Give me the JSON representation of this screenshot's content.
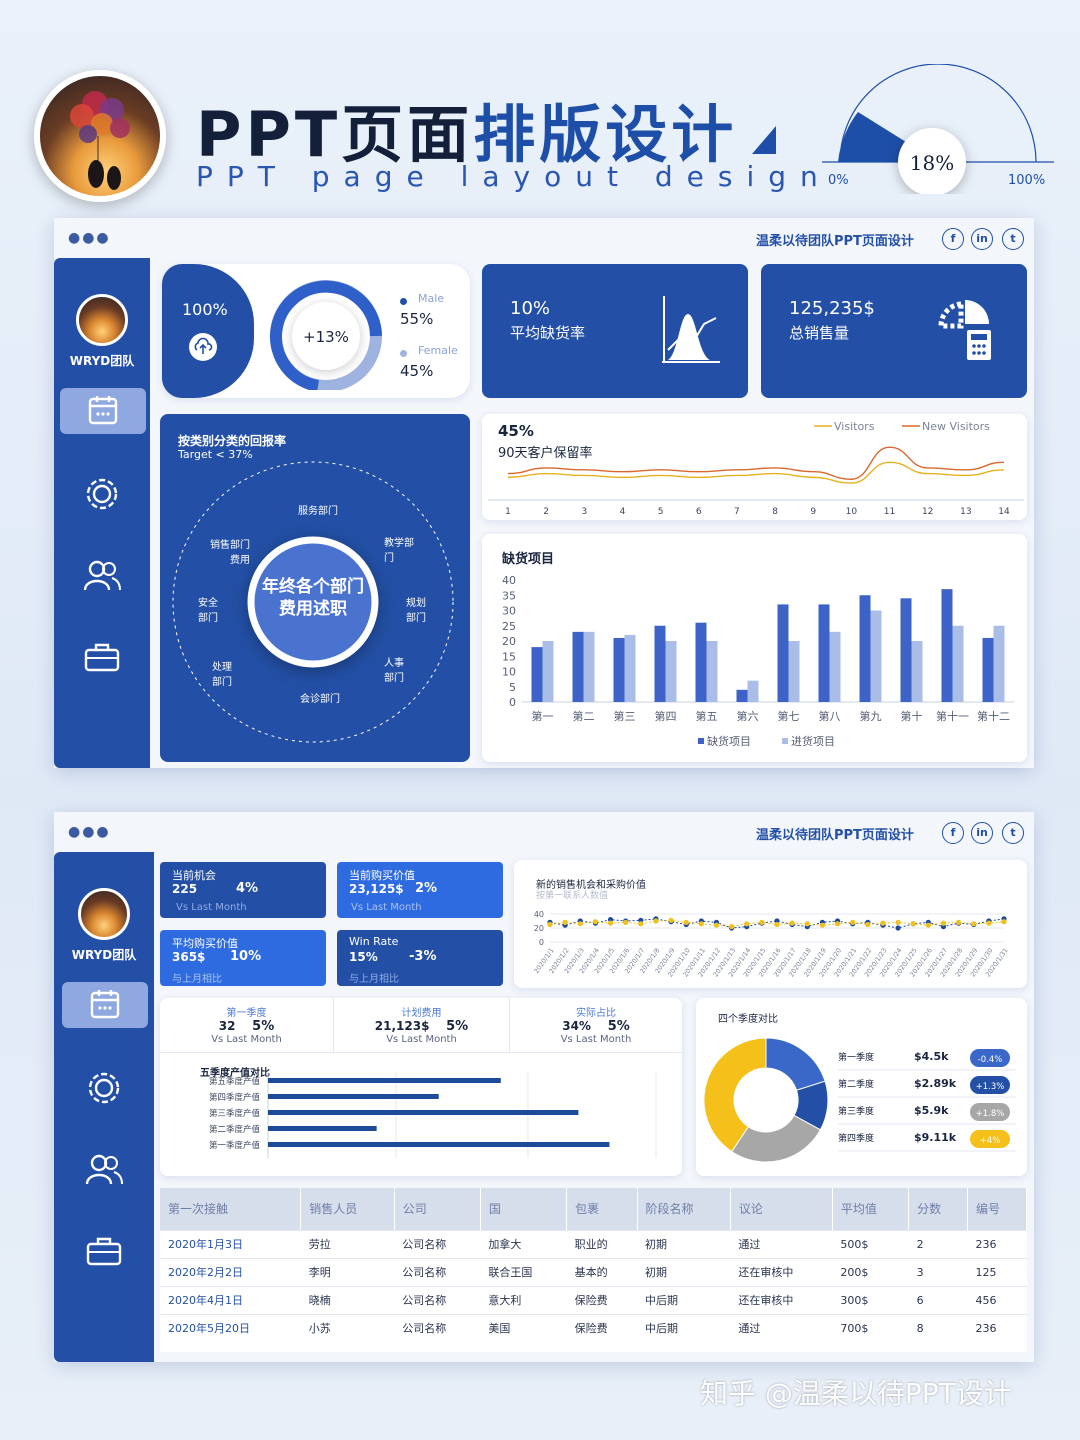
{
  "header": {
    "title_a": "PPT页面",
    "title_b": "排版设计",
    "subtitle": "PPT page layout design",
    "gauge": {
      "value_label": "18%",
      "min_label": "0%",
      "max_label": "100%",
      "fraction": 0.18
    }
  },
  "panel1": {
    "brand": "温柔以待团队PPT页面设计",
    "social": [
      "f",
      "in",
      "t"
    ],
    "sidebar": {
      "team": "WRYD团队"
    },
    "gender": {
      "total": "100%",
      "change": "+13%",
      "male_label": "Male",
      "male_value": "55%",
      "female_label": "Female",
      "female_value": "45%",
      "male_fraction": 0.55
    },
    "stockout": {
      "value": "10%",
      "label": "平均缺货率"
    },
    "sales": {
      "value": "125,235$",
      "label": "总销售量"
    },
    "dept": {
      "title": "按类别分类的回报率",
      "target": "Target < 37%",
      "center": "年终各个部门费用述职",
      "items": [
        "服务部门",
        "教学部门",
        "规划部门",
        "人事部门",
        "会诊部门",
        "处理部门",
        "安全部门",
        "销售部门费用"
      ]
    },
    "retention": {
      "value": "45%",
      "label": "90天客户保留率"
    },
    "bars_title": "缺货项目"
  },
  "panel2": {
    "brand": "温柔以待团队PPT页面设计",
    "social": [
      "f",
      "in",
      "t"
    ],
    "sidebar": {
      "team": "WRYD团队"
    },
    "kpis": [
      {
        "title": "当前机会",
        "value": "225",
        "pct": "4%",
        "sub": "Vs Last Month",
        "color": "#2350a6"
      },
      {
        "title": "当前购买价值",
        "value": "23,125$",
        "pct": "2%",
        "sub": "Vs Last Month",
        "color": "#2f6be0"
      },
      {
        "title": "平均购买价值",
        "value": "365$",
        "pct": "10%",
        "sub": "与上月相比",
        "color": "#2f6be0"
      },
      {
        "title": "Win Rate",
        "value": "15%",
        "pct": "-3%",
        "sub": "与上月相比",
        "color": "#2350a6"
      }
    ],
    "trend": {
      "title": "新的销售机会和采购价值",
      "subtitle": "按第一联系人数值"
    },
    "stats": [
      {
        "title": "第一季度",
        "value": "32",
        "pct": "5%",
        "sub": "Vs Last Month"
      },
      {
        "title": "计划费用",
        "value": "21,123$",
        "pct": "5%",
        "sub": "Vs Last Month"
      },
      {
        "title": "实际占比",
        "value": "34%",
        "pct": "5%",
        "sub": "Vs Last Month"
      }
    ],
    "quarters": {
      "title": "四个季度对比",
      "items": [
        {
          "label": "第一季度",
          "value": "$4.5k",
          "badge": "-0.4%",
          "color": "#3a68c8"
        },
        {
          "label": "第二季度",
          "value": "$2.89k",
          "badge": "+1.3%",
          "color": "#2350a6"
        },
        {
          "label": "第三季度",
          "value": "$5.9k",
          "badge": "+1.8%",
          "color": "#a7a7a7"
        },
        {
          "label": "第四季度",
          "value": "$9.11k",
          "badge": "+4%",
          "color": "#f5c01a"
        }
      ]
    },
    "table": {
      "headers": [
        "第一次接触",
        "销售人员",
        "公司",
        "国",
        "包裹",
        "阶段名称",
        "议论",
        "平均值",
        "分数",
        "编号"
      ],
      "rows": [
        [
          "2020年1月3日",
          "劳拉",
          "公司名称",
          "加拿大",
          "职业的",
          "初期",
          "通过",
          "500$",
          "2",
          "236"
        ],
        [
          "2020年2月2日",
          "李明",
          "公司名称",
          "联合王国",
          "基本的",
          "初期",
          "还在审核中",
          "200$",
          "3",
          "125"
        ],
        [
          "2020年4月1日",
          "晓楠",
          "公司名称",
          "意大利",
          "保险费",
          "中后期",
          "还在审核中",
          "300$",
          "6",
          "456"
        ],
        [
          "2020年5月20日",
          "小苏",
          "公司名称",
          "美国",
          "保险费",
          "中后期",
          "通过",
          "700$",
          "8",
          "236"
        ]
      ]
    }
  },
  "watermark": "知乎 @温柔以待PPT设计",
  "chart_data": [
    {
      "type": "line",
      "x": [
        1,
        2,
        3,
        4,
        5,
        6,
        7,
        8,
        9,
        10,
        11,
        12,
        13,
        14
      ],
      "series": [
        {
          "name": "Visitors",
          "values": [
            12,
            14,
            13,
            12,
            13,
            12,
            13,
            14,
            12,
            9,
            20,
            14,
            13,
            16
          ]
        },
        {
          "name": "New Visitors",
          "values": [
            14,
            17,
            16,
            15,
            16,
            15,
            16,
            17,
            15,
            11,
            28,
            17,
            16,
            20
          ]
        }
      ],
      "xlabel": "",
      "ylabel": "",
      "ylim": [
        0,
        35
      ],
      "legend": "top-right"
    },
    {
      "type": "bar",
      "title": "缺货项目",
      "categories": [
        "第一",
        "第二",
        "第三",
        "第四",
        "第五",
        "第六",
        "第七",
        "第八",
        "第九",
        "第十",
        "第十一",
        "第十二"
      ],
      "series": [
        {
          "name": "缺货项目",
          "values": [
            18,
            23,
            21,
            25,
            26,
            4,
            32,
            32,
            35,
            34,
            37,
            21
          ]
        },
        {
          "name": "进货项目",
          "values": [
            20,
            23,
            22,
            20,
            20,
            7,
            20,
            23,
            30,
            20,
            25,
            25
          ]
        }
      ],
      "ylim": [
        0,
        40
      ],
      "yticks": [
        0,
        5,
        10,
        15,
        20,
        25,
        30,
        35,
        40
      ],
      "legend": "bottom"
    },
    {
      "type": "line",
      "title": "新的销售机会和采购价值",
      "x": [
        "2020/1/1",
        "2020/1/2",
        "2020/1/3",
        "2020/1/4",
        "2020/1/5",
        "2020/1/6",
        "2020/1/7",
        "2020/1/8",
        "2020/1/9",
        "2020/1/10",
        "2020/1/11",
        "2020/1/12",
        "2020/1/13",
        "2020/1/14",
        "2020/1/15",
        "2020/1/16",
        "2020/1/17",
        "2020/1/18",
        "2020/1/19",
        "2020/1/20",
        "2020/1/21",
        "2020/1/22",
        "2020/1/23",
        "2020/1/24",
        "2020/1/25",
        "2020/1/26",
        "2020/1/27",
        "2020/1/28",
        "2020/1/29",
        "2020/1/30",
        "2020/1/31"
      ],
      "series": [
        {
          "values": [
            28,
            24,
            30,
            27,
            32,
            30,
            31,
            33,
            29,
            25,
            30,
            28,
            20,
            22,
            27,
            30,
            25,
            22,
            28,
            30,
            26,
            28,
            24,
            20,
            26,
            28,
            22,
            27,
            25,
            30,
            33
          ]
        },
        {
          "values": [
            25,
            28,
            26,
            29,
            27,
            28,
            26,
            30,
            31,
            28,
            26,
            24,
            22,
            26,
            28,
            25,
            27,
            26,
            24,
            26,
            28,
            25,
            27,
            28,
            26,
            24,
            27,
            28,
            26,
            27,
            29
          ]
        }
      ],
      "ylim": [
        0,
        40
      ],
      "yticks": [
        0,
        20,
        40
      ]
    },
    {
      "type": "bar",
      "title": "五季度产值对比",
      "categories": [
        "第五季度产值",
        "第四季度产值",
        "第三季度产值",
        "第二季度产值",
        "第一季度产值"
      ],
      "values": [
        30,
        22,
        40,
        14,
        44
      ],
      "xlim": [
        0,
        50
      ]
    },
    {
      "type": "pie",
      "title": "四个季度对比",
      "categories": [
        "第一季度",
        "第二季度",
        "第三季度",
        "第四季度"
      ],
      "values": [
        4.5,
        2.89,
        5.9,
        9.11
      ]
    }
  ]
}
